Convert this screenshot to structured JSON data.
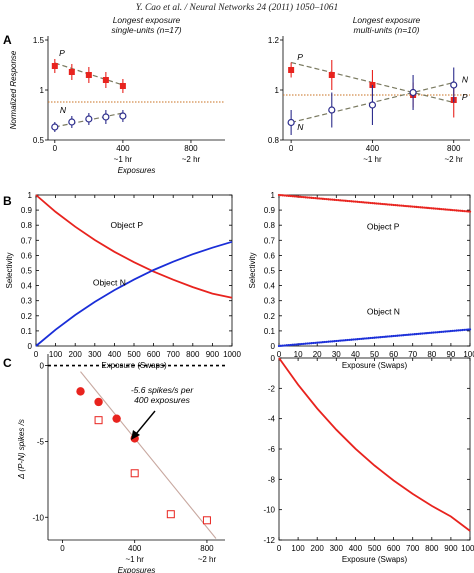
{
  "header": "Y. Cao et al. / Neural Networks 24 (2011) 1050–1061",
  "panel_labels": [
    "A",
    "B",
    "C"
  ],
  "chart_data": [
    {
      "id": "A1",
      "type": "line",
      "title": [
        "Longest exposure",
        "single-units (n=17)"
      ],
      "xlabel": "Exposures",
      "ylabel": "Normalized Response",
      "xticks": [
        0,
        400,
        800
      ],
      "xtick_sub": [
        {
          "x": 400,
          "label": "~1 hr"
        },
        {
          "x": 800,
          "label": "~2 hr"
        }
      ],
      "yticks": [
        0.5,
        1,
        1.5
      ],
      "ytick_labels": [
        "0.5",
        "1",
        "1.5"
      ],
      "xlim": [
        -40,
        1000
      ],
      "ylim": [
        0.5,
        1.5
      ],
      "reference_y": 0.88,
      "series": [
        {
          "name": "P",
          "color": "#e8231e",
          "marker": "filled-square",
          "x": [
            0,
            100,
            200,
            300,
            400
          ],
          "y": [
            1.24,
            1.18,
            1.15,
            1.1,
            1.04
          ],
          "err": [
            0.07,
            0.08,
            0.08,
            0.08,
            0.07
          ],
          "fit": [
            [
              0,
              1.27
            ],
            [
              400,
              1.05
            ]
          ]
        },
        {
          "name": "N",
          "color": "#2c2c8c",
          "marker": "open-circle",
          "x": [
            0,
            100,
            200,
            300,
            400
          ],
          "y": [
            0.63,
            0.68,
            0.71,
            0.73,
            0.74
          ],
          "err": [
            0.05,
            0.06,
            0.06,
            0.07,
            0.06
          ],
          "fit": [
            [
              0,
              0.63
            ],
            [
              400,
              0.77
            ]
          ]
        }
      ]
    },
    {
      "id": "A2",
      "type": "line",
      "title": [
        "Longest exposure",
        "multi-units (n=10)"
      ],
      "xlabel": "",
      "ylabel": "",
      "xticks": [
        0,
        400,
        800
      ],
      "xtick_sub": [
        {
          "x": 400,
          "label": "~1 hr"
        },
        {
          "x": 800,
          "label": "~2 hr"
        }
      ],
      "yticks": [
        0.8,
        1,
        1.2
      ],
      "ytick_labels": [
        "0.8",
        "1",
        "1.2"
      ],
      "xlim": [
        -40,
        880
      ],
      "ylim": [
        0.8,
        1.2
      ],
      "reference_y": 0.98,
      "series": [
        {
          "name": "P",
          "color": "#e8231e",
          "marker": "filled-square",
          "x": [
            0,
            200,
            400,
            600,
            800
          ],
          "y": [
            1.08,
            1.06,
            1.02,
            0.98,
            0.96
          ],
          "err": [
            0.03,
            0.06,
            0.06,
            0.05,
            0.07
          ],
          "fit": [
            [
              0,
              1.11
            ],
            [
              800,
              0.95
            ]
          ]
        },
        {
          "name": "N",
          "color": "#2c2c8c",
          "marker": "open-circle",
          "x": [
            0,
            200,
            400,
            600,
            800
          ],
          "y": [
            0.87,
            0.92,
            0.94,
            0.99,
            1.02
          ],
          "err": [
            0.05,
            0.07,
            0.08,
            0.07,
            0.07
          ],
          "fit": [
            [
              0,
              0.87
            ],
            [
              800,
              1.03
            ]
          ]
        }
      ],
      "labels": [
        {
          "text": "P",
          "x": 30,
          "y": 1.12
        },
        {
          "text": "N",
          "x": 30,
          "y": 0.84
        },
        {
          "text": "N",
          "x": 840,
          "y": 1.03
        },
        {
          "text": "P",
          "x": 840,
          "y": 0.96
        }
      ]
    },
    {
      "id": "B1",
      "type": "line",
      "xlabel": "Exposure (Swaps)",
      "ylabel": "Selectivity",
      "xticks": [
        0,
        100,
        200,
        300,
        400,
        500,
        600,
        700,
        800,
        900,
        1000
      ],
      "yticks": [
        0,
        0.1,
        0.2,
        0.3,
        0.4,
        0.5,
        0.6,
        0.7,
        0.8,
        0.9,
        1
      ],
      "xlim": [
        0,
        1000
      ],
      "ylim": [
        0,
        1
      ],
      "series": [
        {
          "name": "Object P",
          "color": "#e8231e",
          "style": "line",
          "x": [
            0,
            100,
            200,
            300,
            400,
            500,
            600,
            700,
            800,
            900,
            1000
          ],
          "y": [
            1.0,
            0.888,
            0.79,
            0.702,
            0.624,
            0.555,
            0.493,
            0.439,
            0.39,
            0.347,
            0.32
          ]
        },
        {
          "name": "Object N",
          "color": "#1a2ed8",
          "style": "line",
          "x": [
            0,
            100,
            200,
            300,
            400,
            500,
            600,
            700,
            800,
            900,
            1000
          ],
          "y": [
            0.0,
            0.108,
            0.205,
            0.292,
            0.37,
            0.44,
            0.503,
            0.558,
            0.608,
            0.651,
            0.69
          ]
        }
      ]
    },
    {
      "id": "B2",
      "type": "line",
      "xlabel": "Exposure (Swaps)",
      "ylabel": "Selectivity",
      "xticks": [
        0,
        10,
        20,
        30,
        40,
        50,
        60,
        70,
        80,
        90,
        100
      ],
      "yticks": [
        0,
        0.1,
        0.2,
        0.3,
        0.4,
        0.5,
        0.6,
        0.7,
        0.8,
        0.9,
        1
      ],
      "xlim": [
        0,
        100
      ],
      "ylim": [
        0,
        1
      ],
      "series": [
        {
          "name": "Object P",
          "color": "#e8231e",
          "style": "dots",
          "x": [
            0,
            100
          ],
          "y": [
            1.0,
            0.89
          ]
        },
        {
          "name": "Object N",
          "color": "#1a2ed8",
          "style": "dots",
          "x": [
            0,
            100
          ],
          "y": [
            0.0,
            0.11
          ]
        }
      ]
    },
    {
      "id": "C1",
      "type": "scatter",
      "xlabel": "Exposures",
      "ylabel": "Δ (P-N) spikes /s",
      "xticks": [
        0,
        400,
        800
      ],
      "xtick_sub": [
        {
          "x": 400,
          "label": "~1 hr"
        },
        {
          "x": 800,
          "label": "~2 hr"
        }
      ],
      "yticks": [
        0,
        -5,
        -10
      ],
      "ytick_labels": [
        "0",
        "-5",
        "-10"
      ],
      "xlim": [
        -80,
        900
      ],
      "ylim": [
        -11.5,
        0.5
      ],
      "annotation": [
        "-5.6 spikes/s per",
        "400 exposures"
      ],
      "fit": [
        [
          100,
          -0.4
        ],
        [
          850,
          -11.4
        ]
      ],
      "series": [
        {
          "name": "filled",
          "color": "#e8231e",
          "marker": "filled-circle",
          "x": [
            100,
            200,
            300,
            400
          ],
          "y": [
            -1.7,
            -2.4,
            -3.5,
            -4.8
          ]
        },
        {
          "name": "open",
          "color": "#e8231e",
          "marker": "open-square",
          "x": [
            200,
            400,
            600,
            800
          ],
          "y": [
            -3.6,
            -7.1,
            -9.8,
            -10.2
          ]
        }
      ]
    },
    {
      "id": "C2",
      "type": "line",
      "xlabel": "Exposure (Swaps)",
      "ylabel": "",
      "xticks": [
        0,
        100,
        200,
        300,
        400,
        500,
        600,
        700,
        800,
        900,
        1000
      ],
      "yticks": [
        0,
        -2,
        -4,
        -6,
        -8,
        -10,
        -12
      ],
      "xlim": [
        0,
        1000
      ],
      "ylim": [
        -12,
        0
      ],
      "series": [
        {
          "name": "",
          "color": "#e8231e",
          "style": "line",
          "x": [
            0,
            100,
            200,
            300,
            400,
            500,
            600,
            700,
            800,
            900,
            1000
          ],
          "y": [
            0,
            -1.76,
            -3.33,
            -4.73,
            -5.98,
            -7.09,
            -8.08,
            -8.96,
            -9.75,
            -10.45,
            -11.4
          ]
        }
      ]
    }
  ],
  "inline_labels": {
    "A1_P": "P",
    "A1_N": "N",
    "B1_P": "Object P",
    "B1_N": "Object N",
    "B2_P": "Object P",
    "B2_N": "Object N"
  }
}
